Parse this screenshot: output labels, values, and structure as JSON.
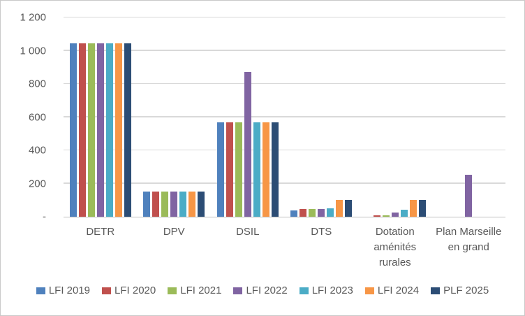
{
  "chart_data": {
    "type": "bar",
    "title": "",
    "xlabel": "",
    "ylabel": "",
    "grid": true,
    "legend_position": "bottom",
    "categories": [
      "DETR",
      "DPV",
      "DSIL",
      "DTS",
      "Dotation aménités rurales",
      "Plan Marseille en grand"
    ],
    "series": [
      {
        "name": "LFI 2019",
        "color": "#4F81BD",
        "values": [
          1046,
          150,
          570,
          40,
          0,
          0
        ]
      },
      {
        "name": "LFI 2020",
        "color": "#C0504D",
        "values": [
          1046,
          150,
          570,
          46,
          10,
          0
        ]
      },
      {
        "name": "LFI 2021",
        "color": "#9BBB59",
        "values": [
          1046,
          150,
          570,
          46,
          10,
          0
        ]
      },
      {
        "name": "LFI 2022",
        "color": "#8064A2",
        "values": [
          1046,
          150,
          873,
          46,
          25,
          254
        ]
      },
      {
        "name": "LFI 2023",
        "color": "#4BACC6",
        "values": [
          1046,
          150,
          570,
          52,
          42,
          0
        ]
      },
      {
        "name": "LFI 2024",
        "color": "#F79646",
        "values": [
          1046,
          150,
          570,
          100,
          100,
          0
        ]
      },
      {
        "name": "PLF 2025",
        "color": "#2C4D75",
        "values": [
          1046,
          150,
          570,
          100,
          100,
          0
        ]
      }
    ],
    "y_axis": {
      "min": 0,
      "max": 1200,
      "step": 200,
      "ticks": [
        {
          "value": 0,
          "label": "-"
        },
        {
          "value": 200,
          "label": "200"
        },
        {
          "value": 400,
          "label": "400"
        },
        {
          "value": 600,
          "label": "600"
        },
        {
          "value": 800,
          "label": "800"
        },
        {
          "value": 1000,
          "label": "1 000"
        },
        {
          "value": 1200,
          "label": "1 200"
        }
      ]
    },
    "style_colors": {
      "gridline": "#d9d9d9",
      "axis_line": "#bfbfbf",
      "tick_text": "#595959",
      "background": "#ffffff",
      "frame_border": "#c9c9c9"
    }
  }
}
